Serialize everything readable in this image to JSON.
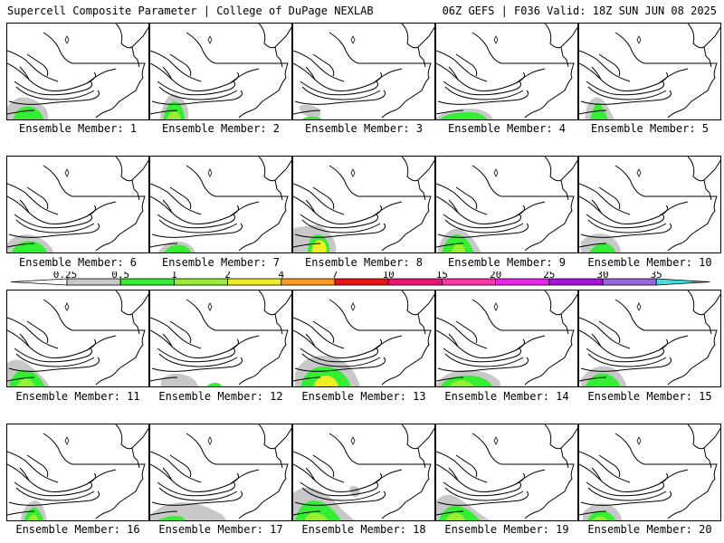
{
  "header": {
    "left": "Supercell Composite Parameter | College of DuPage NEXLAB",
    "right": "06Z GEFS | F036 Valid: 18Z SUN JUN 08 2025"
  },
  "scale": {
    "values": [
      "0.25",
      "0.5",
      "1",
      "2",
      "4",
      "7",
      "10",
      "15",
      "20",
      "25",
      "30",
      "35"
    ],
    "colors": [
      "#c8c8c8",
      "#33ee33",
      "#99ee33",
      "#eeee22",
      "#ff9922",
      "#ee1111",
      "#ee1177",
      "#ff33aa",
      "#ee22ee",
      "#aa11dd",
      "#9966dd",
      "#44dddd"
    ]
  },
  "panels": [
    {
      "label": "Ensemble Member: 1",
      "member": 1
    },
    {
      "label": "Ensemble Member: 2",
      "member": 2
    },
    {
      "label": "Ensemble Member: 3",
      "member": 3
    },
    {
      "label": "Ensemble Member: 4",
      "member": 4
    },
    {
      "label": "Ensemble Member: 5",
      "member": 5
    },
    {
      "label": "Ensemble Member: 6",
      "member": 6
    },
    {
      "label": "Ensemble Member: 7",
      "member": 7
    },
    {
      "label": "Ensemble Member: 8",
      "member": 8
    },
    {
      "label": "Ensemble Member: 9",
      "member": 9
    },
    {
      "label": "Ensemble Member: 10",
      "member": 10
    },
    {
      "label": "Ensemble Member: 11",
      "member": 11
    },
    {
      "label": "Ensemble Member: 12",
      "member": 12
    },
    {
      "label": "Ensemble Member: 13",
      "member": 13
    },
    {
      "label": "Ensemble Member: 14",
      "member": 14
    },
    {
      "label": "Ensemble Member: 15",
      "member": 15
    },
    {
      "label": "Ensemble Member: 16",
      "member": 16
    },
    {
      "label": "Ensemble Member: 17",
      "member": 17
    },
    {
      "label": "Ensemble Member: 18",
      "member": 18
    },
    {
      "label": "Ensemble Member: 19",
      "member": 19
    },
    {
      "label": "Ensemble Member: 20",
      "member": 20
    }
  ]
}
